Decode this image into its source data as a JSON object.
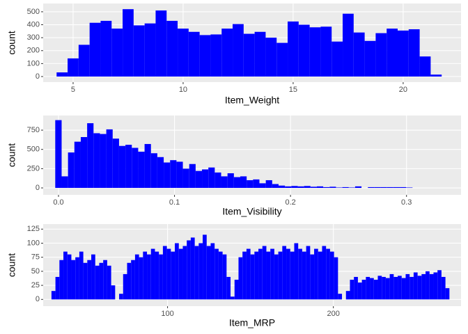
{
  "chart_data": [
    {
      "type": "histogram",
      "x_label": "Item_Weight",
      "y_label": "count",
      "color": "#0000ff",
      "grid": true,
      "bins": [
        4.25,
        4.75,
        5.25,
        5.75,
        6.25,
        6.75,
        7.25,
        7.75,
        8.25,
        8.75,
        9.25,
        9.75,
        10.25,
        10.75,
        11.25,
        11.75,
        12.25,
        12.75,
        13.25,
        13.75,
        14.25,
        14.75,
        15.25,
        15.75,
        16.25,
        16.75,
        17.25,
        17.75,
        18.25,
        18.75,
        19.25,
        19.75,
        20.25,
        20.75,
        21.25,
        21.75
      ],
      "values": [
        32,
        140,
        245,
        415,
        430,
        370,
        520,
        395,
        410,
        510,
        430,
        370,
        345,
        320,
        325,
        370,
        405,
        330,
        345,
        300,
        260,
        425,
        400,
        380,
        385,
        270,
        485,
        340,
        275,
        335,
        370,
        355,
        365,
        155,
        15
      ],
      "xlim": [
        3.64,
        22.63
      ],
      "ylim": [
        -43,
        564
      ],
      "xticks": [
        5,
        10,
        15,
        20
      ],
      "yticks": [
        0,
        100,
        200,
        300,
        400,
        500
      ]
    },
    {
      "type": "histogram",
      "x_label": "Item_Visibility",
      "y_label": "count",
      "color": "#0000ff",
      "grid": true,
      "bins": [
        -0.0028,
        0.0027,
        0.0082,
        0.0137,
        0.0192,
        0.0247,
        0.0302,
        0.0357,
        0.0412,
        0.0467,
        0.0522,
        0.0577,
        0.0632,
        0.0687,
        0.0742,
        0.0797,
        0.0852,
        0.0907,
        0.0962,
        0.1017,
        0.1072,
        0.1127,
        0.1182,
        0.1237,
        0.1292,
        0.1347,
        0.1402,
        0.1457,
        0.1512,
        0.1567,
        0.1622,
        0.1677,
        0.1732,
        0.1787,
        0.1842,
        0.1897,
        0.1952,
        0.2007,
        0.2062,
        0.2117,
        0.2172,
        0.2227,
        0.2282,
        0.2337,
        0.2392,
        0.2447,
        0.2502,
        0.2557,
        0.2612,
        0.2667,
        0.2722,
        0.2777,
        0.2832,
        0.2887,
        0.2942,
        0.2997,
        0.3052
      ],
      "values": [
        880,
        150,
        460,
        600,
        660,
        840,
        710,
        700,
        760,
        640,
        545,
        560,
        520,
        470,
        570,
        450,
        400,
        330,
        360,
        340,
        250,
        310,
        220,
        240,
        265,
        200,
        150,
        190,
        140,
        150,
        100,
        110,
        60,
        100,
        50,
        30,
        20,
        25,
        20,
        25,
        15,
        20,
        10,
        15,
        5,
        10,
        5,
        20,
        0,
        10,
        10,
        10,
        10,
        10,
        10,
        5
      ],
      "xlim": [
        -0.0132,
        0.347
      ],
      "ylim": [
        -90,
        940
      ],
      "xticks": [
        {
          "value": 0,
          "label": "0.0"
        },
        0.1,
        0.2,
        0.3
      ],
      "yticks": [
        0,
        250,
        500,
        750
      ]
    },
    {
      "type": "histogram",
      "x_label": "Item_MRP",
      "y_label": "count",
      "color": "#0000ff",
      "grid": true,
      "bins": [
        30,
        32.4,
        34.8,
        37.2,
        39.6,
        42,
        44.4,
        46.8,
        49.2,
        51.6,
        54,
        56.4,
        58.8,
        61.2,
        63.6,
        66,
        68.4,
        70.8,
        73.2,
        75.6,
        78,
        80.4,
        82.8,
        85.2,
        87.6,
        90,
        92.4,
        94.8,
        97.2,
        99.6,
        102,
        104.4,
        106.8,
        109.2,
        111.6,
        114,
        116.4,
        118.8,
        121.2,
        123.6,
        126,
        128.4,
        130.8,
        133.2,
        135.6,
        138,
        140.4,
        142.8,
        145.2,
        147.6,
        150,
        152.4,
        154.8,
        157.2,
        159.6,
        162,
        164.4,
        166.8,
        169.2,
        171.6,
        174,
        176.4,
        178.8,
        181.2,
        183.6,
        186,
        188.4,
        190.8,
        193.2,
        195.6,
        198,
        200.4,
        202.8,
        205.2,
        207.6,
        210,
        212.4,
        214.8,
        217.2,
        219.6,
        222,
        224.4,
        226.8,
        229.2,
        231.6,
        234,
        236.4,
        238.8,
        241.2,
        243.6,
        246,
        248.4,
        250.8,
        253.2,
        255.6,
        258,
        260.4,
        262.8,
        265.2,
        267.6,
        270
      ],
      "values": [
        15,
        40,
        70,
        85,
        80,
        70,
        75,
        85,
        65,
        70,
        80,
        60,
        65,
        70,
        60,
        25,
        0,
        10,
        45,
        65,
        70,
        80,
        75,
        85,
        80,
        90,
        85,
        80,
        95,
        90,
        85,
        100,
        90,
        95,
        105,
        110,
        95,
        100,
        115,
        95,
        100,
        90,
        85,
        80,
        40,
        5,
        35,
        75,
        85,
        90,
        80,
        85,
        90,
        95,
        85,
        90,
        80,
        85,
        95,
        90,
        85,
        100,
        90,
        85,
        95,
        80,
        90,
        85,
        95,
        90,
        85,
        75,
        10,
        0,
        15,
        35,
        40,
        30,
        35,
        40,
        38,
        35,
        42,
        40,
        38,
        45,
        40,
        42,
        38,
        45,
        40,
        48,
        42,
        45,
        50,
        45,
        48,
        52,
        40,
        20
      ],
      "xlim": [
        25,
        277
      ],
      "ylim": [
        -12,
        134
      ],
      "xticks": [
        100,
        200
      ],
      "yticks": [
        0,
        25,
        50,
        75,
        100,
        125
      ]
    }
  ]
}
